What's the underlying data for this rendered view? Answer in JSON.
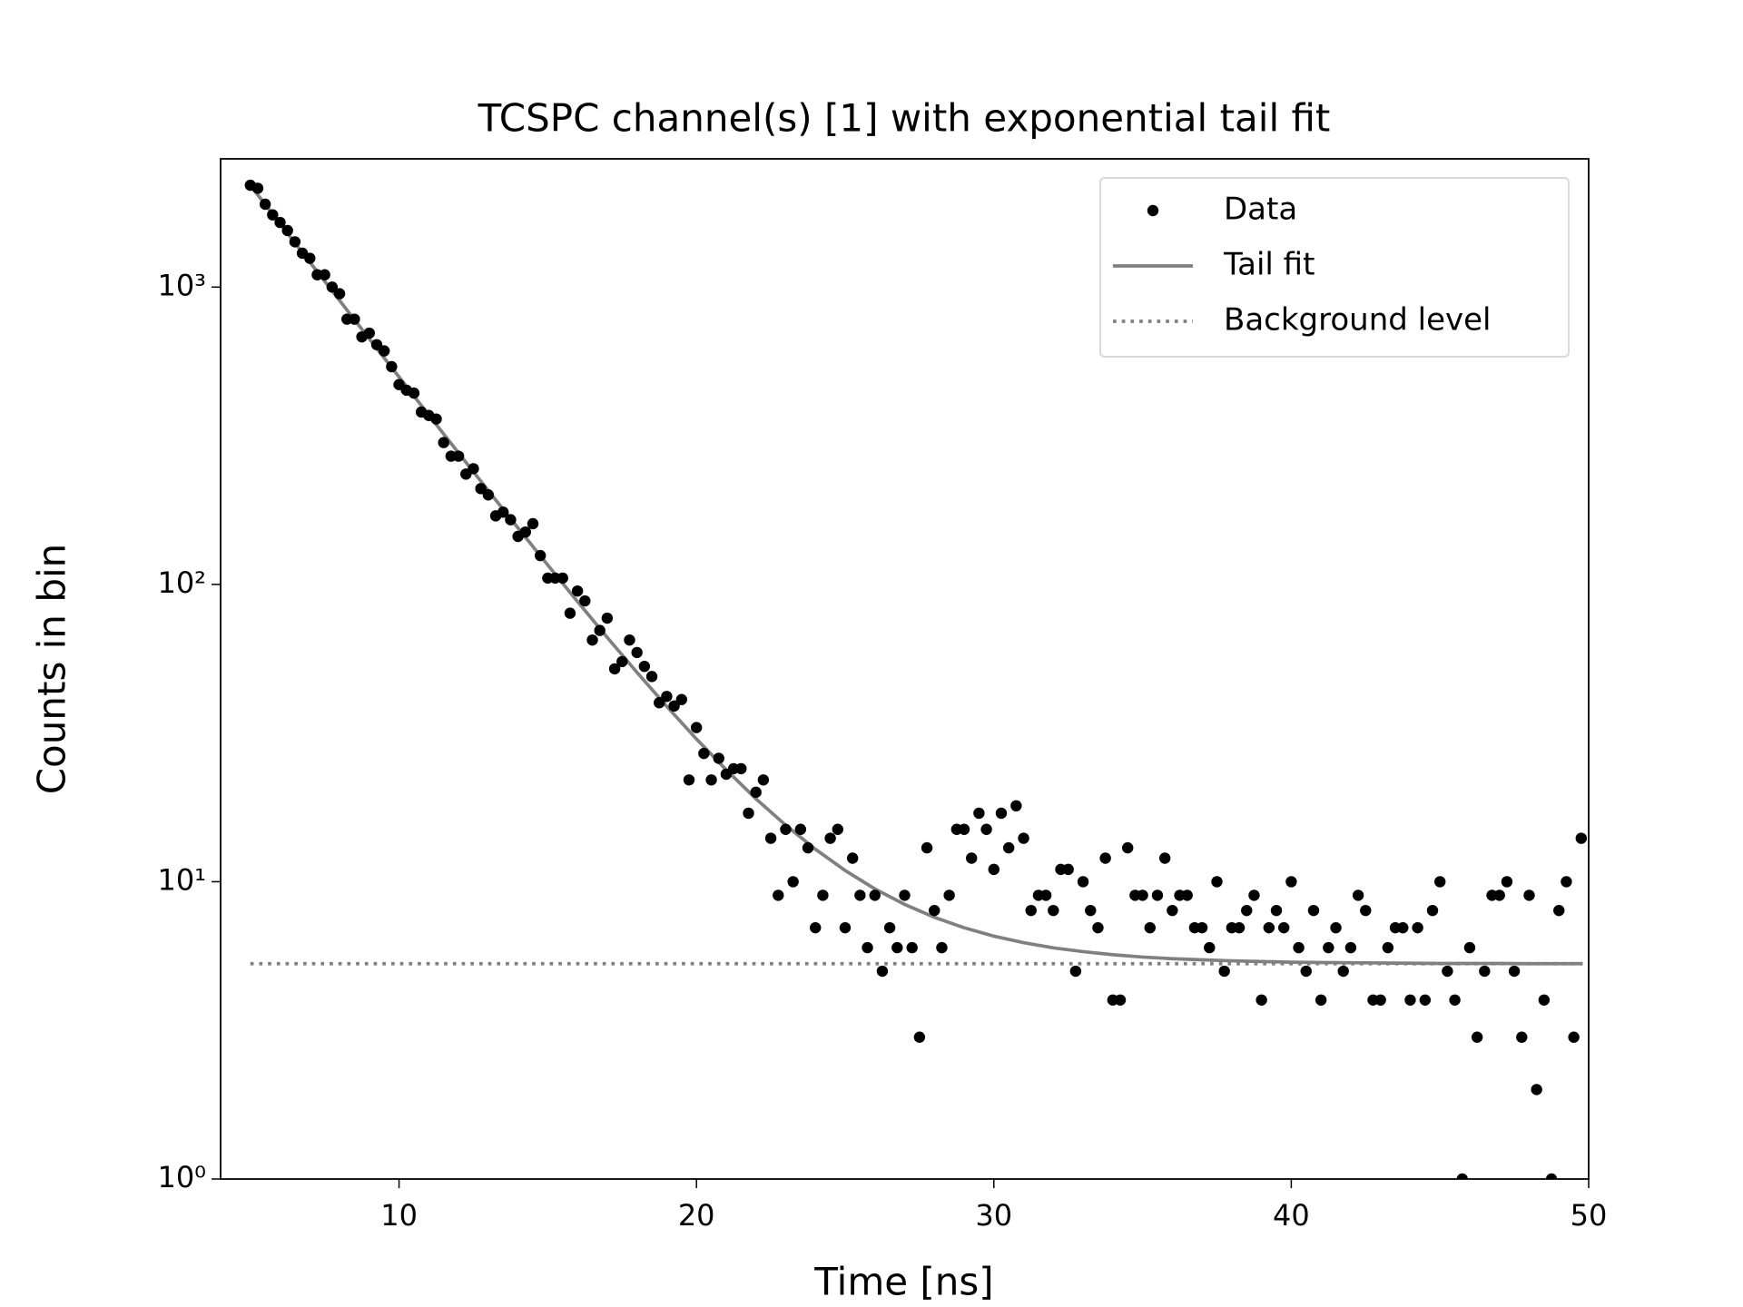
{
  "chart_data": {
    "type": "scatter",
    "title": "TCSPC channel(s) [1] with exponential tail fit",
    "x_label": "Time [ns]",
    "y_label": "Counts in bin",
    "xlim": [
      4,
      50
    ],
    "ylim": [
      1,
      2700
    ],
    "y_scale": "log",
    "xticks": [
      10,
      20,
      30,
      40,
      50
    ],
    "yticks": [
      {
        "value": 1,
        "label": "10⁰"
      },
      {
        "value": 10,
        "label": "10¹"
      },
      {
        "value": 100,
        "label": "10²"
      },
      {
        "value": 1000,
        "label": "10³"
      }
    ],
    "grid": false,
    "legend": "upper right",
    "series": [
      {
        "name": "Data",
        "style": "marker",
        "color": "#000000",
        "x": [
          5,
          5.25,
          5.5,
          5.75,
          6,
          6.25,
          6.5,
          6.75,
          7,
          7.25,
          7.5,
          7.75,
          8,
          8.25,
          8.5,
          8.75,
          9,
          9.25,
          9.5,
          9.75,
          10,
          10.25,
          10.5,
          10.75,
          11,
          11.25,
          11.5,
          11.75,
          12,
          12.25,
          12.5,
          12.75,
          13,
          13.25,
          13.5,
          13.75,
          14,
          14.25,
          14.5,
          14.75,
          15,
          15.25,
          15.5,
          15.75,
          16,
          16.25,
          16.5,
          16.75,
          17,
          17.25,
          17.5,
          17.75,
          18,
          18.25,
          18.5,
          18.75,
          19,
          19.25,
          19.5,
          19.75,
          20,
          20.25,
          20.5,
          20.75,
          21,
          21.25,
          21.5,
          21.75,
          22,
          22.25,
          22.5,
          22.75,
          23,
          23.25,
          23.5,
          23.75,
          24,
          24.25,
          24.5,
          24.75,
          25,
          25.25,
          25.5,
          25.75,
          26,
          26.25,
          26.5,
          26.75,
          27,
          27.25,
          27.5,
          27.75,
          28,
          28.25,
          28.5,
          28.75,
          29,
          29.25,
          29.5,
          29.75,
          30,
          30.25,
          30.5,
          30.75,
          31,
          31.25,
          31.5,
          31.75,
          32,
          32.25,
          32.5,
          32.75,
          33,
          33.25,
          33.5,
          33.75,
          34,
          34.25,
          34.5,
          34.75,
          35,
          35.25,
          35.5,
          35.75,
          36,
          36.25,
          36.5,
          36.75,
          37,
          37.25,
          37.5,
          37.75,
          38,
          38.25,
          38.5,
          38.75,
          39,
          39.25,
          39.5,
          39.75,
          40,
          40.25,
          40.5,
          40.75,
          41,
          41.25,
          41.5,
          41.75,
          42,
          42.25,
          42.5,
          42.75,
          43,
          43.25,
          43.5,
          43.75,
          44,
          44.25,
          44.5,
          44.75,
          45,
          45.25,
          45.5,
          45.75,
          46,
          46.25,
          46.5,
          46.75,
          47,
          47.25,
          47.5,
          47.75,
          48,
          48.25,
          48.5,
          48.75,
          49,
          49.25,
          49.5,
          49.75
        ],
        "values": [
          2200,
          2150,
          1900,
          1750,
          1650,
          1550,
          1420,
          1300,
          1250,
          1100,
          1100,
          1000,
          950,
          780,
          780,
          680,
          700,
          640,
          610,
          540,
          470,
          450,
          440,
          380,
          370,
          360,
          300,
          270,
          270,
          235,
          245,
          210,
          200,
          170,
          175,
          165,
          145,
          150,
          160,
          125,
          105,
          105,
          105,
          80,
          95,
          88,
          65,
          70,
          77,
          52,
          55,
          65,
          59,
          53,
          49,
          40,
          42,
          39,
          41,
          22,
          33,
          27,
          22,
          26,
          23,
          24,
          24,
          17,
          20,
          22,
          14,
          9,
          15,
          10,
          15,
          13,
          7,
          9,
          14,
          15,
          7,
          12,
          9,
          6,
          9,
          5,
          7,
          6,
          9,
          6,
          3,
          13,
          8,
          6,
          9,
          15,
          15,
          12,
          17,
          15,
          11,
          17,
          13,
          18,
          14,
          8,
          9,
          9,
          8,
          11,
          11,
          5,
          10,
          8,
          7,
          12,
          4,
          4,
          13,
          9,
          9,
          7,
          9,
          12,
          8,
          9,
          9,
          7,
          7,
          6,
          10,
          5,
          7,
          7,
          8,
          9,
          4,
          7,
          8,
          7,
          10,
          6,
          5,
          8,
          4,
          6,
          7,
          5,
          6,
          9,
          8,
          4,
          4,
          6,
          7,
          7,
          4,
          7,
          4,
          8,
          10,
          5,
          4,
          1,
          6,
          3,
          5,
          9,
          9,
          10,
          5,
          3,
          9,
          2,
          4,
          1,
          8,
          10,
          3,
          14
        ]
      },
      {
        "name": "Tail fit",
        "style": "line",
        "color": "#808080",
        "x": [
          5,
          6,
          7,
          8,
          9,
          10,
          11,
          12,
          13,
          14,
          15,
          16,
          17,
          18,
          19,
          20,
          21,
          22,
          23,
          24,
          25,
          26,
          27,
          28,
          29,
          30,
          31,
          32,
          33,
          34,
          35,
          36,
          37,
          38,
          39,
          40,
          41,
          42,
          43,
          44,
          45,
          46,
          47,
          48,
          49,
          49.8
        ],
        "values": [
          2200.3,
          1633.8,
          1213.5,
          901.6,
          670.3,
          498.6,
          371.3,
          276.8,
          206.8,
          154.8,
          116.2,
          87.6,
          66.3,
          50.6,
          38.9,
          30.2,
          23.8,
          19.0,
          15.5,
          12.86,
          10.91,
          9.46,
          8.39,
          7.59,
          7.0,
          6.56,
          6.24,
          5.99,
          5.82,
          5.68,
          5.58,
          5.51,
          5.46,
          5.42,
          5.39,
          5.36,
          5.35,
          5.34,
          5.33,
          5.32,
          5.31,
          5.31,
          5.31,
          5.3,
          5.3,
          5.3
        ]
      },
      {
        "name": "Background level",
        "style": "dotted",
        "color": "#808080",
        "x": [
          5,
          49.8
        ],
        "values": [
          5.3,
          5.3
        ]
      }
    ]
  }
}
